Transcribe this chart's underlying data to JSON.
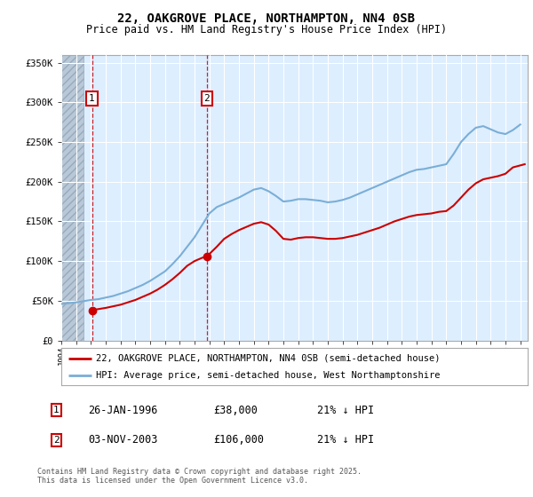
{
  "title": "22, OAKGROVE PLACE, NORTHAMPTON, NN4 0SB",
  "subtitle": "Price paid vs. HM Land Registry's House Price Index (HPI)",
  "legend_line1": "22, OAKGROVE PLACE, NORTHAMPTON, NN4 0SB (semi-detached house)",
  "legend_line2": "HPI: Average price, semi-detached house, West Northamptonshire",
  "annotation1_date": "26-JAN-1996",
  "annotation1_price": "£38,000",
  "annotation1_hpi": "21% ↓ HPI",
  "annotation2_date": "03-NOV-2003",
  "annotation2_price": "£106,000",
  "annotation2_hpi": "21% ↓ HPI",
  "footnote": "Contains HM Land Registry data © Crown copyright and database right 2025.\nThis data is licensed under the Open Government Licence v3.0.",
  "ylim": [
    0,
    360000
  ],
  "yticks": [
    0,
    50000,
    100000,
    150000,
    200000,
    250000,
    300000,
    350000
  ],
  "ytick_labels": [
    "£0",
    "£50K",
    "£100K",
    "£150K",
    "£200K",
    "£250K",
    "£300K",
    "£350K"
  ],
  "red_color": "#cc0000",
  "blue_color": "#7aaed6",
  "purchase1_x": 1996.07,
  "purchase1_y": 38000,
  "purchase2_x": 2003.84,
  "purchase2_y": 106000,
  "hatch_end_year": 1995.5,
  "chart_bg": "#ddeeff",
  "hatch_color": "#b8c8d8",
  "grid_color": "#ffffff",
  "xmin": 1994.0,
  "xmax": 2025.5,
  "years_blue": [
    1994.0,
    1994.5,
    1995.0,
    1995.5,
    1996.0,
    1996.5,
    1997.0,
    1997.5,
    1998.0,
    1998.5,
    1999.0,
    1999.5,
    2000.0,
    2000.5,
    2001.0,
    2001.5,
    2002.0,
    2002.5,
    2003.0,
    2003.5,
    2004.0,
    2004.5,
    2005.0,
    2005.5,
    2006.0,
    2006.5,
    2007.0,
    2007.5,
    2008.0,
    2008.5,
    2009.0,
    2009.5,
    2010.0,
    2010.5,
    2011.0,
    2011.5,
    2012.0,
    2012.5,
    2013.0,
    2013.5,
    2014.0,
    2014.5,
    2015.0,
    2015.5,
    2016.0,
    2016.5,
    2017.0,
    2017.5,
    2018.0,
    2018.5,
    2019.0,
    2019.5,
    2020.0,
    2020.5,
    2021.0,
    2021.5,
    2022.0,
    2022.5,
    2023.0,
    2023.5,
    2024.0,
    2024.5,
    2025.0
  ],
  "hpi_values": [
    46000,
    47000,
    48000,
    49500,
    51000,
    52000,
    54000,
    56000,
    59000,
    62000,
    66000,
    70000,
    75000,
    81000,
    87000,
    96000,
    106000,
    118000,
    130000,
    145000,
    160000,
    168000,
    172000,
    176000,
    180000,
    185000,
    190000,
    192000,
    188000,
    182000,
    175000,
    176000,
    178000,
    178000,
    177000,
    176000,
    174000,
    175000,
    177000,
    180000,
    184000,
    188000,
    192000,
    196000,
    200000,
    204000,
    208000,
    212000,
    215000,
    216000,
    218000,
    220000,
    222000,
    235000,
    250000,
    260000,
    268000,
    270000,
    266000,
    262000,
    260000,
    265000,
    272000
  ],
  "years_red": [
    1996.07,
    1996.5,
    1997.0,
    1997.5,
    1998.0,
    1998.5,
    1999.0,
    1999.5,
    2000.0,
    2000.5,
    2001.0,
    2001.5,
    2002.0,
    2002.5,
    2003.0,
    2003.5,
    2003.84,
    2004.5,
    2005.0,
    2005.5,
    2006.0,
    2006.5,
    2007.0,
    2007.5,
    2008.0,
    2008.5,
    2009.0,
    2009.5,
    2010.0,
    2010.5,
    2011.0,
    2011.5,
    2012.0,
    2012.5,
    2013.0,
    2013.5,
    2014.0,
    2014.5,
    2015.0,
    2015.5,
    2016.0,
    2016.5,
    2017.0,
    2017.5,
    2018.0,
    2018.5,
    2019.0,
    2019.5,
    2020.0,
    2020.5,
    2021.0,
    2021.5,
    2022.0,
    2022.5,
    2023.0,
    2023.5,
    2024.0,
    2024.5,
    2025.3
  ],
  "red_values": [
    38000,
    39500,
    41000,
    43000,
    45000,
    48000,
    51000,
    55000,
    59000,
    64000,
    70000,
    77000,
    85000,
    94000,
    100000,
    104000,
    106000,
    118000,
    128000,
    134000,
    139000,
    143000,
    147000,
    149000,
    146000,
    138000,
    128000,
    127000,
    129000,
    130000,
    130000,
    129000,
    128000,
    128000,
    129000,
    131000,
    133000,
    136000,
    139000,
    142000,
    146000,
    150000,
    153000,
    156000,
    158000,
    159000,
    160000,
    162000,
    163000,
    170000,
    180000,
    190000,
    198000,
    203000,
    205000,
    207000,
    210000,
    218000,
    222000
  ]
}
